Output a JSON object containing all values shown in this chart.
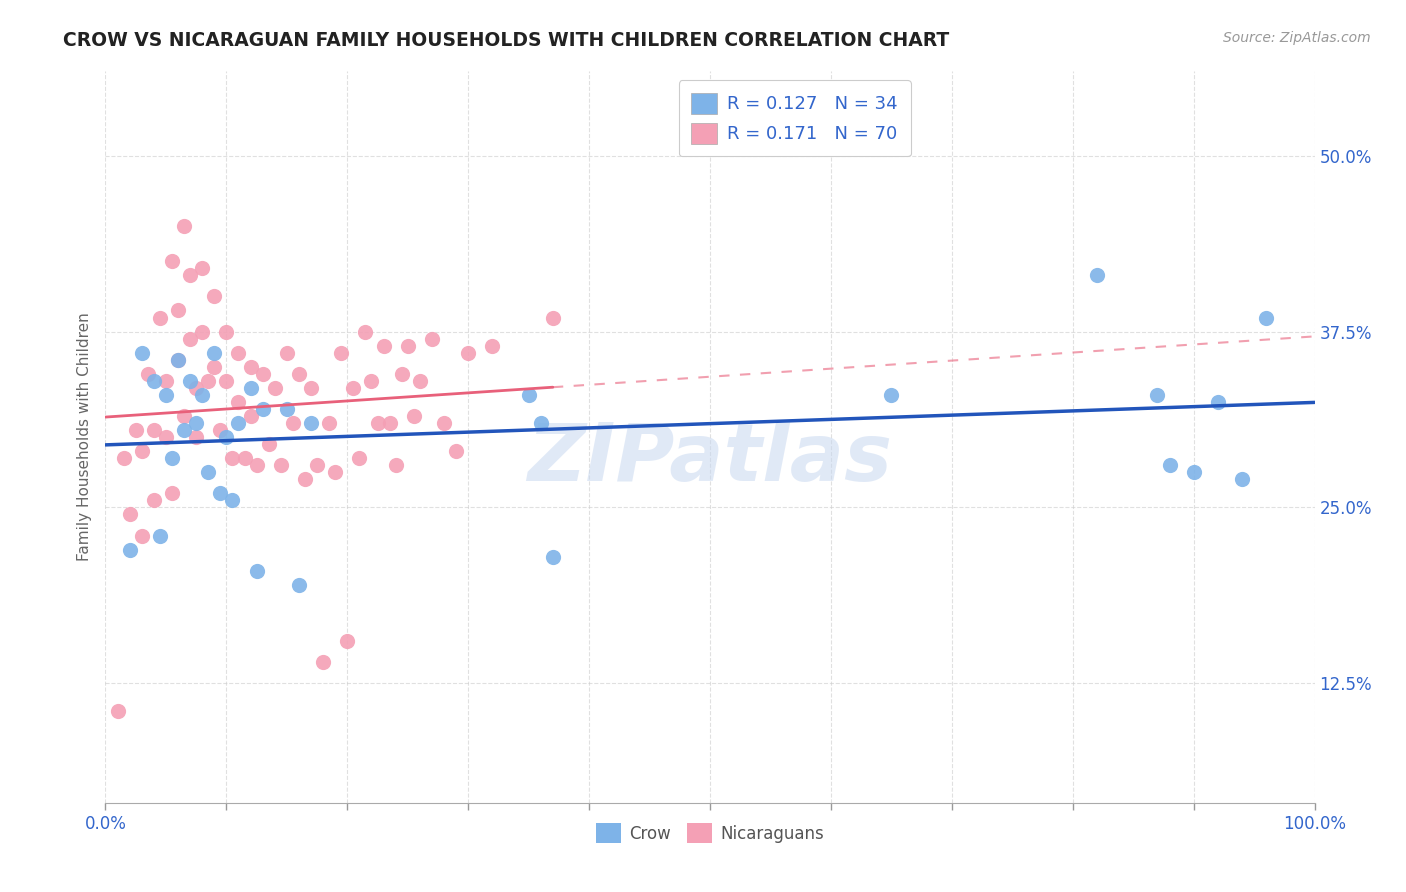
{
  "title": "CROW VS NICARAGUAN FAMILY HOUSEHOLDS WITH CHILDREN CORRELATION CHART",
  "source": "Source: ZipAtlas.com",
  "ylabel": "Family Households with Children",
  "ytick_labels": [
    "12.5%",
    "25.0%",
    "37.5%",
    "50.0%"
  ],
  "ytick_values": [
    0.125,
    0.25,
    0.375,
    0.5
  ],
  "xtick_values": [
    0.0,
    0.1,
    0.2,
    0.3,
    0.4,
    0.5,
    0.6,
    0.7,
    0.8,
    0.9,
    1.0
  ],
  "xlim": [
    0.0,
    1.0
  ],
  "ylim": [
    0.04,
    0.56
  ],
  "crow_R": 0.127,
  "crow_N": 34,
  "nicar_R": 0.171,
  "nicar_N": 70,
  "crow_color": "#7EB3E8",
  "nicar_color": "#F4A0B5",
  "crow_line_color": "#2255BB",
  "nicar_line_color": "#E8607A",
  "watermark": "ZIPatlas",
  "background_color": "#FFFFFF",
  "grid_color": "#CCCCCC",
  "crow_scatter_x": [
    0.02,
    0.03,
    0.04,
    0.045,
    0.05,
    0.055,
    0.06,
    0.065,
    0.07,
    0.075,
    0.08,
    0.085,
    0.09,
    0.095,
    0.1,
    0.105,
    0.11,
    0.12,
    0.125,
    0.13,
    0.15,
    0.16,
    0.17,
    0.35,
    0.36,
    0.37,
    0.65,
    0.82,
    0.87,
    0.88,
    0.9,
    0.92,
    0.94,
    0.96
  ],
  "crow_scatter_y": [
    0.22,
    0.36,
    0.34,
    0.23,
    0.33,
    0.285,
    0.355,
    0.305,
    0.34,
    0.31,
    0.33,
    0.275,
    0.36,
    0.26,
    0.3,
    0.255,
    0.31,
    0.335,
    0.205,
    0.32,
    0.32,
    0.195,
    0.31,
    0.33,
    0.31,
    0.215,
    0.33,
    0.415,
    0.33,
    0.28,
    0.275,
    0.325,
    0.27,
    0.385
  ],
  "nicar_scatter_x": [
    0.01,
    0.015,
    0.02,
    0.025,
    0.03,
    0.03,
    0.035,
    0.04,
    0.04,
    0.045,
    0.05,
    0.05,
    0.055,
    0.055,
    0.06,
    0.06,
    0.065,
    0.065,
    0.07,
    0.07,
    0.075,
    0.075,
    0.08,
    0.08,
    0.085,
    0.09,
    0.09,
    0.095,
    0.1,
    0.1,
    0.105,
    0.11,
    0.11,
    0.115,
    0.12,
    0.12,
    0.125,
    0.13,
    0.135,
    0.14,
    0.145,
    0.15,
    0.155,
    0.16,
    0.165,
    0.17,
    0.175,
    0.18,
    0.185,
    0.19,
    0.195,
    0.2,
    0.205,
    0.21,
    0.215,
    0.22,
    0.225,
    0.23,
    0.235,
    0.24,
    0.245,
    0.25,
    0.255,
    0.26,
    0.27,
    0.28,
    0.29,
    0.3,
    0.32,
    0.37
  ],
  "nicar_scatter_y": [
    0.105,
    0.285,
    0.245,
    0.305,
    0.29,
    0.23,
    0.345,
    0.305,
    0.255,
    0.385,
    0.34,
    0.3,
    0.26,
    0.425,
    0.39,
    0.355,
    0.315,
    0.45,
    0.415,
    0.37,
    0.335,
    0.3,
    0.42,
    0.375,
    0.34,
    0.4,
    0.35,
    0.305,
    0.375,
    0.34,
    0.285,
    0.36,
    0.325,
    0.285,
    0.35,
    0.315,
    0.28,
    0.345,
    0.295,
    0.335,
    0.28,
    0.36,
    0.31,
    0.345,
    0.27,
    0.335,
    0.28,
    0.14,
    0.31,
    0.275,
    0.36,
    0.155,
    0.335,
    0.285,
    0.375,
    0.34,
    0.31,
    0.365,
    0.31,
    0.28,
    0.345,
    0.365,
    0.315,
    0.34,
    0.37,
    0.31,
    0.29,
    0.36,
    0.365,
    0.385
  ]
}
